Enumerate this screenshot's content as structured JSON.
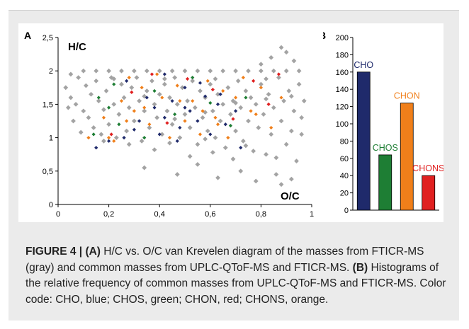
{
  "figure_number": "FIGURE 4 |",
  "caption": {
    "a_label": "(A)",
    "a_text": "H/C vs. O/C van Krevelen diagram of the masses from FTICR-MS (gray) and common masses from UPLC-QToF-MS and FTICR-MS.",
    "b_label": "(B)",
    "b_text": "Histograms of the relative frequency of common masses from UPLC-QToF-MS and FTICR-MS. Color code: CHO, blue; CHOS, green; CHON, red; CHONS, orange."
  },
  "colors": {
    "gray": "#a3a3a3",
    "CHO": "#1f2a6b",
    "CHOS": "#1e7e34",
    "CHON": "#f07f1a",
    "CHONS": "#e02020",
    "frame": "#ebebeb"
  },
  "chart_data": [
    {
      "panel": "A",
      "type": "scatter",
      "ylabel": "H/C",
      "xlabel": "O/C",
      "xlim": [
        0,
        1
      ],
      "ylim": [
        0,
        2.5
      ],
      "x_ticks": [
        "0",
        "0,2",
        "0,4",
        "0,6",
        "0,8",
        "1"
      ],
      "x_tick_values": [
        0,
        0.2,
        0.4,
        0.6,
        0.8,
        1
      ],
      "y_ticks": [
        "0",
        "0,5",
        "1",
        "1,5",
        "2",
        "2,5"
      ],
      "y_tick_values": [
        0,
        0.5,
        1,
        1.5,
        2,
        2.5
      ],
      "series": [
        {
          "color_key": "gray",
          "points": [
            [
              0.03,
              1.75
            ],
            [
              0.05,
              1.6
            ],
            [
              0.07,
              1.5
            ],
            [
              0.08,
              1.9
            ],
            [
              0.1,
              1.4
            ],
            [
              0.11,
              1.78
            ],
            [
              0.12,
              1.3
            ],
            [
              0.13,
              1.65
            ],
            [
              0.14,
              1.15
            ],
            [
              0.15,
              1.85
            ],
            [
              0.16,
              1.55
            ],
            [
              0.17,
              1.05
            ],
            [
              0.18,
              1.42
            ],
            [
              0.19,
              1.7
            ],
            [
              0.2,
              1.2
            ],
            [
              0.21,
              1.9
            ],
            [
              0.22,
              1.5
            ],
            [
              0.23,
              1.0
            ],
            [
              0.24,
              1.35
            ],
            [
              0.25,
              1.8
            ],
            [
              0.26,
              1.6
            ],
            [
              0.27,
              1.1
            ],
            [
              0.28,
              1.45
            ],
            [
              0.29,
              1.75
            ],
            [
              0.3,
              1.25
            ],
            [
              0.31,
              1.9
            ],
            [
              0.32,
              1.55
            ],
            [
              0.33,
              0.95
            ],
            [
              0.34,
              1.4
            ],
            [
              0.35,
              1.7
            ],
            [
              0.36,
              1.15
            ],
            [
              0.37,
              1.85
            ],
            [
              0.38,
              1.5
            ],
            [
              0.39,
              1.3
            ],
            [
              0.4,
              1.65
            ],
            [
              0.41,
              1.05
            ],
            [
              0.42,
              1.8
            ],
            [
              0.43,
              1.4
            ],
            [
              0.44,
              1.6
            ],
            [
              0.45,
              1.2
            ],
            [
              0.46,
              1.9
            ],
            [
              0.47,
              1.5
            ],
            [
              0.48,
              1.0
            ],
            [
              0.49,
              1.75
            ],
            [
              0.5,
              1.35
            ],
            [
              0.51,
              1.55
            ],
            [
              0.52,
              1.15
            ],
            [
              0.53,
              1.85
            ],
            [
              0.54,
              1.45
            ],
            [
              0.55,
              0.9
            ],
            [
              0.56,
              1.7
            ],
            [
              0.57,
              1.3
            ],
            [
              0.58,
              1.6
            ],
            [
              0.59,
              1.1
            ],
            [
              0.6,
              1.8
            ],
            [
              0.61,
              1.4
            ],
            [
              0.62,
              1.0
            ],
            [
              0.63,
              1.65
            ],
            [
              0.64,
              1.25
            ],
            [
              0.65,
              1.5
            ],
            [
              0.66,
              0.85
            ],
            [
              0.67,
              1.75
            ],
            [
              0.68,
              1.35
            ],
            [
              0.69,
              1.55
            ],
            [
              0.7,
              1.1
            ],
            [
              0.71,
              1.85
            ],
            [
              0.72,
              1.45
            ],
            [
              0.73,
              0.95
            ],
            [
              0.74,
              1.7
            ],
            [
              0.75,
              1.25
            ],
            [
              0.76,
              1.6
            ],
            [
              0.77,
              0.8
            ],
            [
              0.78,
              1.5
            ],
            [
              0.79,
              1.15
            ],
            [
              0.8,
              1.8
            ],
            [
              0.81,
              1.35
            ],
            [
              0.82,
              0.75
            ],
            [
              0.83,
              1.65
            ],
            [
              0.84,
              1.05
            ],
            [
              0.85,
              1.45
            ],
            [
              0.86,
              0.7
            ],
            [
              0.87,
              1.9
            ],
            [
              0.88,
              1.25
            ],
            [
              0.89,
              1.55
            ],
            [
              0.9,
              0.9
            ],
            [
              0.91,
              1.7
            ],
            [
              0.92,
              1.1
            ],
            [
              0.93,
              1.4
            ],
            [
              0.94,
              0.65
            ],
            [
              0.95,
              1.8
            ],
            [
              0.96,
              1.3
            ],
            [
              0.05,
              1.95
            ],
            [
              0.15,
              2.0
            ],
            [
              0.25,
              2.0
            ],
            [
              0.35,
              2.0
            ],
            [
              0.45,
              2.0
            ],
            [
              0.55,
              2.0
            ],
            [
              0.65,
              2.0
            ],
            [
              0.75,
              2.0
            ],
            [
              0.85,
              2.0
            ],
            [
              0.95,
              2.0
            ],
            [
              0.1,
              2.0
            ],
            [
              0.2,
              2.0
            ],
            [
              0.3,
              2.0
            ],
            [
              0.4,
              2.0
            ],
            [
              0.5,
              2.0
            ],
            [
              0.6,
              2.0
            ],
            [
              0.7,
              2.0
            ],
            [
              0.8,
              2.0
            ],
            [
              0.9,
              2.0
            ],
            [
              0.22,
              1.88
            ],
            [
              0.42,
              1.88
            ],
            [
              0.62,
              1.88
            ],
            [
              0.82,
              1.88
            ],
            [
              0.34,
              0.55
            ],
            [
              0.47,
              0.45
            ],
            [
              0.55,
              0.6
            ],
            [
              0.63,
              0.4
            ],
            [
              0.72,
              0.5
            ],
            [
              0.78,
              0.35
            ],
            [
              0.86,
              0.45
            ],
            [
              0.88,
              0.3
            ],
            [
              0.92,
              0.38
            ],
            [
              0.52,
              0.72
            ],
            [
              0.61,
              0.78
            ],
            [
              0.69,
              0.68
            ],
            [
              0.84,
              2.2
            ],
            [
              0.88,
              2.35
            ],
            [
              0.9,
              2.28
            ],
            [
              0.93,
              2.15
            ],
            [
              0.8,
              2.1
            ],
            [
              0.44,
              0.92
            ],
            [
              0.38,
              0.82
            ],
            [
              0.28,
              0.9
            ],
            [
              0.18,
              0.95
            ],
            [
              0.58,
              0.98
            ],
            [
              0.74,
              0.88
            ],
            [
              0.96,
              1.05
            ],
            [
              0.97,
              1.55
            ],
            [
              0.09,
              1.08
            ],
            [
              0.06,
              1.25
            ],
            [
              0.04,
              1.45
            ],
            [
              0.34,
              1.62
            ],
            [
              0.46,
              1.28
            ],
            [
              0.58,
              1.38
            ],
            [
              0.7,
              1.52
            ],
            [
              0.82,
              1.58
            ],
            [
              0.92,
              1.62
            ]
          ]
        },
        {
          "color_key": "CHO",
          "points": [
            [
              0.15,
              0.85
            ],
            [
              0.2,
              0.95
            ],
            [
              0.26,
              1.0
            ],
            [
              0.3,
              1.12
            ],
            [
              0.35,
              1.6
            ],
            [
              0.38,
              1.45
            ],
            [
              0.42,
              1.3
            ],
            [
              0.45,
              1.55
            ],
            [
              0.48,
              1.15
            ],
            [
              0.5,
              1.75
            ],
            [
              0.52,
              1.4
            ],
            [
              0.55,
              1.25
            ],
            [
              0.58,
              1.62
            ],
            [
              0.6,
              1.05
            ],
            [
              0.63,
              1.5
            ],
            [
              0.66,
              1.2
            ],
            [
              0.7,
              1.4
            ],
            [
              0.72,
              0.85
            ],
            [
              0.42,
              1.95
            ],
            [
              0.27,
              1.85
            ],
            [
              0.32,
              1.25
            ],
            [
              0.4,
              1.05
            ],
            [
              0.47,
              0.95
            ],
            [
              0.5,
              1.45
            ],
            [
              0.56,
              1.82
            ],
            [
              0.64,
              1.65
            ]
          ]
        },
        {
          "color_key": "CHOS",
          "points": [
            [
              0.14,
              1.05
            ],
            [
              0.16,
              1.6
            ],
            [
              0.2,
              1.45
            ],
            [
              0.22,
              1.8
            ],
            [
              0.24,
              1.2
            ],
            [
              0.34,
              1.0
            ],
            [
              0.38,
              1.7
            ],
            [
              0.46,
              1.35
            ],
            [
              0.53,
              1.9
            ],
            [
              0.6,
              1.52
            ],
            [
              0.68,
              1.18
            ],
            [
              0.74,
              1.6
            ]
          ]
        },
        {
          "color_key": "CHON",
          "points": [
            [
              0.12,
              1.0
            ],
            [
              0.18,
              1.3
            ],
            [
              0.22,
              0.95
            ],
            [
              0.25,
              1.55
            ],
            [
              0.28,
              1.9
            ],
            [
              0.3,
              1.4
            ],
            [
              0.33,
              1.75
            ],
            [
              0.36,
              1.2
            ],
            [
              0.39,
              1.95
            ],
            [
              0.41,
              1.6
            ],
            [
              0.44,
              1.0
            ],
            [
              0.47,
              1.78
            ],
            [
              0.5,
              1.25
            ],
            [
              0.53,
              1.55
            ],
            [
              0.56,
              1.05
            ],
            [
              0.59,
              1.85
            ],
            [
              0.62,
              1.3
            ],
            [
              0.65,
              1.7
            ],
            [
              0.67,
              1.0
            ],
            [
              0.7,
              1.6
            ],
            [
              0.73,
              1.9
            ],
            [
              0.76,
              1.4
            ],
            [
              0.8,
              1.75
            ],
            [
              0.84,
              1.15
            ],
            [
              0.88,
              1.6
            ],
            [
              0.2,
              1.0
            ],
            [
              0.34,
              1.45
            ],
            [
              0.48,
              1.55
            ],
            [
              0.57,
              1.4
            ],
            [
              0.63,
              1.2
            ],
            [
              0.78,
              1.35
            ],
            [
              0.27,
              1.25
            ]
          ]
        },
        {
          "color_key": "CHONS",
          "points": [
            [
              0.21,
              1.05
            ],
            [
              0.29,
              1.68
            ],
            [
              0.37,
              1.95
            ],
            [
              0.43,
              1.22
            ],
            [
              0.51,
              1.88
            ],
            [
              0.61,
              1.72
            ],
            [
              0.69,
              1.28
            ],
            [
              0.77,
              1.85
            ],
            [
              0.83,
              1.5
            ],
            [
              0.87,
              1.95
            ]
          ]
        }
      ]
    },
    {
      "panel": "B",
      "type": "bar",
      "categories": [
        "CHO",
        "CHOS",
        "CHON",
        "CHONS"
      ],
      "values": [
        160,
        64,
        124,
        40
      ],
      "ylim": [
        0,
        200
      ],
      "y_ticks": [
        "0",
        "20",
        "40",
        "60",
        "80",
        "100",
        "120",
        "140",
        "160",
        "180",
        "200"
      ],
      "y_tick_values": [
        0,
        20,
        40,
        60,
        80,
        100,
        120,
        140,
        160,
        180,
        200
      ]
    }
  ],
  "panel_labels": {
    "a": "A",
    "b": "B"
  }
}
